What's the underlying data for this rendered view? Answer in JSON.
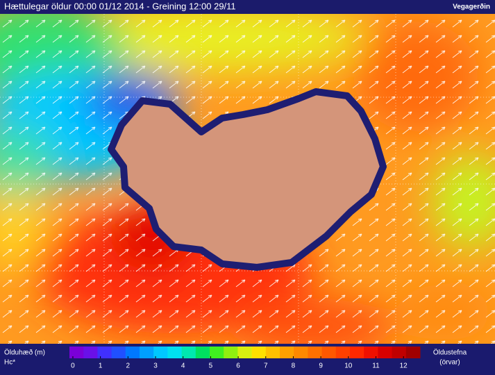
{
  "header": {
    "title": "Hættulegar öldur 00:00 01/12 2014 - Greining 12:00 29/11",
    "brand": "Vegagerðin"
  },
  "legend": {
    "label": "Ölduhæð (m)",
    "sublabel": "Hc*",
    "ticks": [
      0,
      1,
      2,
      3,
      4,
      5,
      6,
      7,
      8,
      9,
      10,
      11,
      12
    ],
    "range": [
      -0.125,
      12.6
    ],
    "colors": [
      "#7a00d8",
      "#6a10e8",
      "#4030ff",
      "#2050ff",
      "#0078ff",
      "#00a0ff",
      "#00c8ff",
      "#00e0f0",
      "#00e8b0",
      "#00e060",
      "#40f020",
      "#90f010",
      "#d8f010",
      "#ffe000",
      "#ffc000",
      "#ffa000",
      "#ff8800",
      "#ff7000",
      "#ff5800",
      "#ff4000",
      "#ff2800",
      "#f01000",
      "#d80000",
      "#c00000",
      "#a00000"
    ],
    "direction_label": "Öldustefna",
    "direction_sublabel": "(örvar)"
  }
}
